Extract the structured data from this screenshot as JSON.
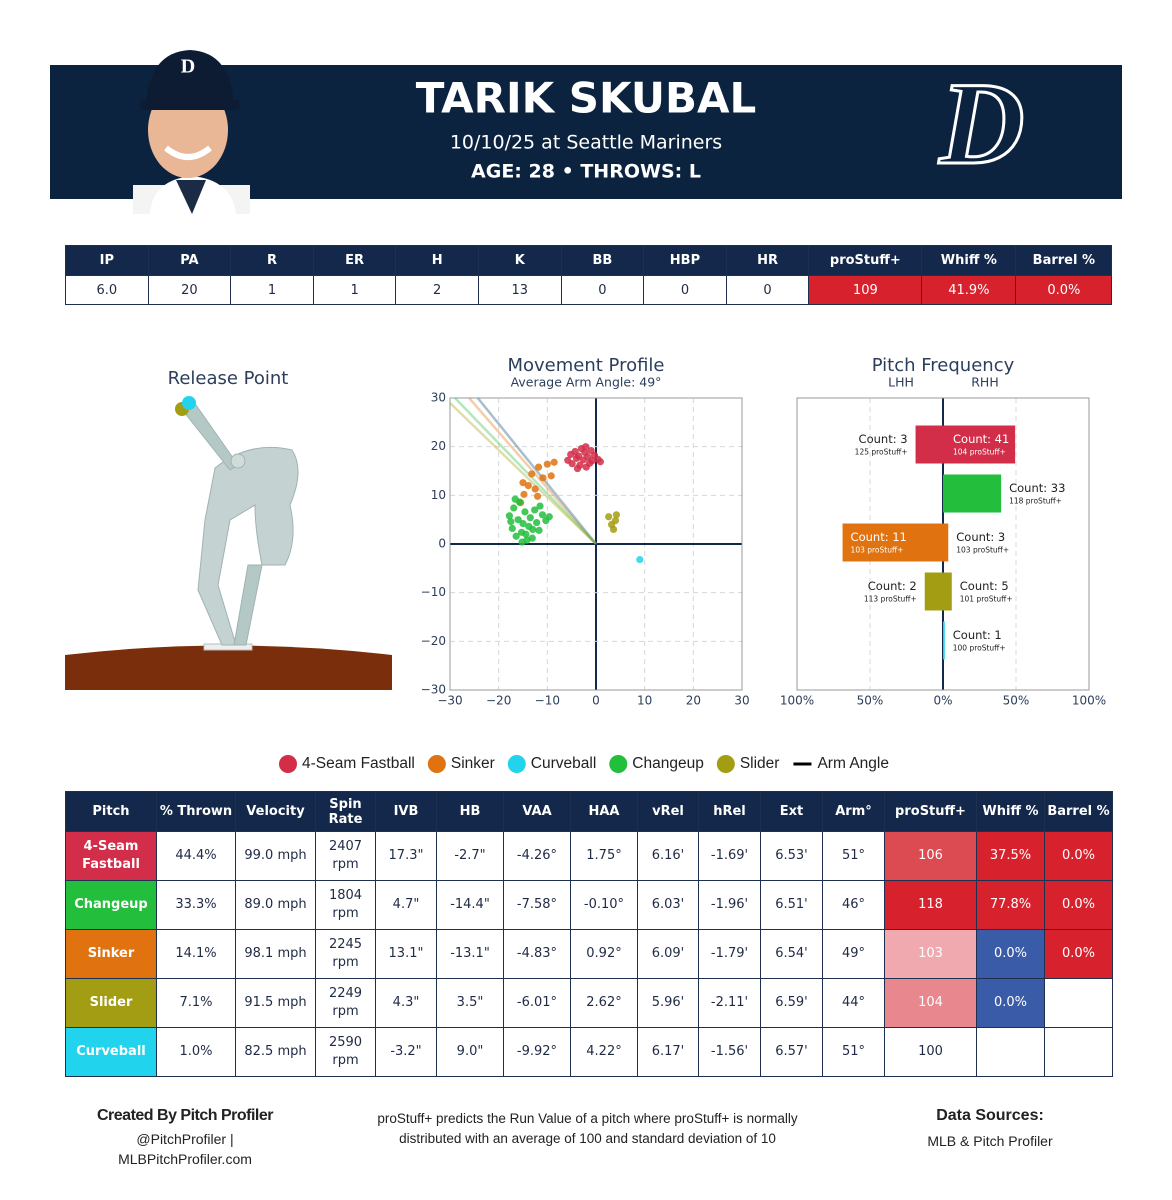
{
  "header": {
    "name": "TARIK SKUBAL",
    "game": "10/10/25 at Seattle Mariners",
    "bio": "AGE: 28 • THROWS: L",
    "logo": "D"
  },
  "summary": {
    "columns": [
      "IP",
      "PA",
      "R",
      "ER",
      "H",
      "K",
      "BB",
      "HBP",
      "HR",
      "proStuff+",
      "Whiff %",
      "Barrel %"
    ],
    "values": [
      "6.0",
      "20",
      "1",
      "1",
      "2",
      "13",
      "0",
      "0",
      "0",
      "109",
      "41.9%",
      "0.0%"
    ],
    "cell_colors": [
      null,
      null,
      null,
      null,
      null,
      null,
      null,
      null,
      null,
      "#d7222e",
      "#d7222e",
      "#d7222e"
    ]
  },
  "chart_data": [
    {
      "type": "release",
      "title": "Release Point"
    },
    {
      "type": "scatter",
      "title": "Movement Profile",
      "subtitle": "Average Arm Angle: 49°",
      "arm_angle_legend": "Arm Angle",
      "xlim": [
        -30,
        30
      ],
      "ylim": [
        -30,
        30
      ],
      "grid": true,
      "xticks": [
        {
          "value": -30,
          "label": "−30"
        },
        {
          "value": -20,
          "label": "−20"
        },
        {
          "value": -10,
          "label": "−10"
        },
        0,
        10,
        20,
        30
      ],
      "yticks": [
        {
          "value": -30,
          "label": "−30"
        },
        {
          "value": -20,
          "label": "−20"
        },
        {
          "value": -10,
          "label": "−10"
        },
        0,
        10,
        20,
        30
      ],
      "series": [
        {
          "name": "4-Seam Fastball",
          "color": "#d22d49",
          "arm_angle": 51,
          "x": [
            -5.8,
            -5.2,
            -4.9,
            -4.3,
            -4.0,
            -3.6,
            -3.3,
            -3.0,
            -2.6,
            -2.3,
            -2.0,
            -1.7,
            -1.3,
            -0.8,
            -0.3,
            0.4,
            0.9,
            -3.8,
            -2.1,
            -1.0
          ],
          "values": [
            17.2,
            18.4,
            16.5,
            19.0,
            17.6,
            18.1,
            16.2,
            19.6,
            17.3,
            18.8,
            15.8,
            17.9,
            16.6,
            17.1,
            18.2,
            17.4,
            16.9,
            15.5,
            20.0,
            19.2
          ]
        },
        {
          "name": "Sinker",
          "color": "#e0730f",
          "arm_angle": 49,
          "x": [
            -15.5,
            -14.8,
            -13.9,
            -13.2,
            -12.5,
            -11.8,
            -10.9,
            -10.0,
            -9.2,
            -8.6,
            -15.0,
            -12.0
          ],
          "values": [
            8.5,
            10.2,
            12.0,
            14.4,
            11.3,
            15.8,
            13.6,
            16.4,
            14.0,
            16.8,
            12.6,
            9.8
          ]
        },
        {
          "name": "Curveball",
          "color": "#22d3ee",
          "arm_angle": 51,
          "x": [
            9.0
          ],
          "values": [
            -3.2
          ]
        },
        {
          "name": "Changeup",
          "color": "#22be3c",
          "arm_angle": 46,
          "x": [
            -17.8,
            -17.2,
            -16.9,
            -16.4,
            -16.0,
            -15.7,
            -15.3,
            -15.0,
            -14.6,
            -14.2,
            -13.8,
            -13.5,
            -13.1,
            -12.6,
            -12.2,
            -11.7,
            -11.0,
            -10.3,
            -9.6,
            -16.6,
            -15.2,
            -14.4,
            -13.0,
            -17.5,
            -11.5
          ],
          "values": [
            5.8,
            3.2,
            7.4,
            1.6,
            5.0,
            8.6,
            2.4,
            4.2,
            6.6,
            0.8,
            3.6,
            5.4,
            1.2,
            7.0,
            4.4,
            2.8,
            6.0,
            4.8,
            5.6,
            9.2,
            0.4,
            2.0,
            3.0,
            4.6,
            7.8
          ]
        },
        {
          "name": "Slider",
          "color": "#a29d12",
          "arm_angle": 44,
          "x": [
            2.6,
            3.2,
            3.6,
            4.0,
            4.2
          ],
          "values": [
            5.6,
            4.0,
            3.0,
            4.8,
            6.0
          ]
        }
      ]
    },
    {
      "type": "diverging-bar",
      "title": "Pitch Frequency",
      "left_label": "LHH",
      "right_label": "RHH",
      "xlim": [
        -100,
        100
      ],
      "grid": true,
      "xticks": [
        {
          "value": -100,
          "label": "100%"
        },
        {
          "value": -50,
          "label": "50%"
        },
        {
          "value": 0,
          "label": "0%"
        },
        {
          "value": 50,
          "label": "50%"
        },
        {
          "value": 100,
          "label": "100%"
        }
      ],
      "categories": [
        null,
        null,
        null,
        null,
        null
      ],
      "colors": [
        "#d22d49",
        "#22be3c",
        "#e0730f",
        "#a29d12",
        "#22d3ee"
      ],
      "series": [
        {
          "name": "LHH",
          "values": [
            -18.8,
            null,
            -68.8,
            -12.5,
            null
          ],
          "count_labels": [
            "Count: 3",
            null,
            "Count: 11",
            "Count: 2",
            null
          ],
          "stuff_labels": [
            "125 proStuff+",
            null,
            "103 proStuff+",
            "113 proStuff+",
            null
          ]
        },
        {
          "name": "RHH",
          "values": [
            49.4,
            39.8,
            3.6,
            6.0,
            1.2
          ],
          "count_labels": [
            "Count: 41",
            "Count: 33",
            "Count: 3",
            "Count: 5",
            "Count: 1"
          ],
          "stuff_labels": [
            "104 proStuff+",
            "118 proStuff+",
            "103 proStuff+",
            "101 proStuff+",
            "100 proStuff+"
          ]
        }
      ]
    }
  ],
  "pitch_table": {
    "columns": [
      "Pitch",
      "% Thrown",
      "Velocity",
      "Spin Rate",
      "IVB",
      "HB",
      "VAA",
      "HAA",
      "vRel",
      "hRel",
      "Ext",
      "Arm°",
      "proStuff+",
      "Whiff %",
      "Barrel %"
    ],
    "rows": [
      {
        "cells": [
          "4-Seam Fastball",
          "44.4%",
          "99.0 mph",
          "2407 rpm",
          "17.3\"",
          "-2.7\"",
          "-4.26°",
          "1.75°",
          "6.16'",
          "-1.69'",
          "6.53'",
          "51°",
          "106",
          "37.5%",
          "0.0%"
        ],
        "colors": [
          "#d22d49",
          null,
          null,
          null,
          null,
          null,
          null,
          null,
          null,
          null,
          null,
          null,
          "#dc4a52",
          "#d7222e",
          "#d7222e"
        ]
      },
      {
        "cells": [
          "Changeup",
          "33.3%",
          "89.0 mph",
          "1804 rpm",
          "4.7\"",
          "-14.4\"",
          "-7.58°",
          "-0.10°",
          "6.03'",
          "-1.96'",
          "6.51'",
          "46°",
          "118",
          "77.8%",
          "0.0%"
        ],
        "colors": [
          "#22be3c",
          null,
          null,
          null,
          null,
          null,
          null,
          null,
          null,
          null,
          null,
          null,
          "#d7222e",
          "#d7222e",
          "#d7222e"
        ]
      },
      {
        "cells": [
          "Sinker",
          "14.1%",
          "98.1 mph",
          "2245 rpm",
          "13.1\"",
          "-13.1\"",
          "-4.83°",
          "0.92°",
          "6.09'",
          "-1.79'",
          "6.54'",
          "49°",
          "103",
          "0.0%",
          "0.0%"
        ],
        "colors": [
          "#e0730f",
          null,
          null,
          null,
          null,
          null,
          null,
          null,
          null,
          null,
          null,
          null,
          "#f0a9ae",
          "#3a5ca8",
          "#d7222e"
        ]
      },
      {
        "cells": [
          "Slider",
          "7.1%",
          "91.5 mph",
          "2249 rpm",
          "4.3\"",
          "3.5\"",
          "-6.01°",
          "2.62°",
          "5.96'",
          "-2.11'",
          "6.59'",
          "44°",
          "104",
          "0.0%",
          null
        ],
        "colors": [
          "#a29d12",
          null,
          null,
          null,
          null,
          null,
          null,
          null,
          null,
          null,
          null,
          null,
          "#e8878d",
          "#3a5ca8",
          null
        ]
      },
      {
        "cells": [
          "Curveball",
          "1.0%",
          "82.5 mph",
          "2590 rpm",
          "-3.2\"",
          "9.0\"",
          "-9.92°",
          "4.22°",
          "6.17'",
          "-1.56'",
          "6.57'",
          "51°",
          "100",
          null,
          null
        ],
        "colors": [
          "#22d3ee",
          null,
          null,
          null,
          null,
          null,
          null,
          null,
          null,
          null,
          null,
          null,
          null,
          null,
          null
        ]
      }
    ]
  },
  "footer": {
    "credit_title": "Created By Pitch Profiler",
    "credit_handle": "@PitchProfiler |",
    "credit_site": "MLBPitchProfiler.com",
    "note": "proStuff+ predicts the Run Value of a pitch where proStuff+ is normally distributed with an average of 100 and standard deviation of 10",
    "sources_title": "Data Sources:",
    "sources": "MLB & Pitch Profiler"
  }
}
